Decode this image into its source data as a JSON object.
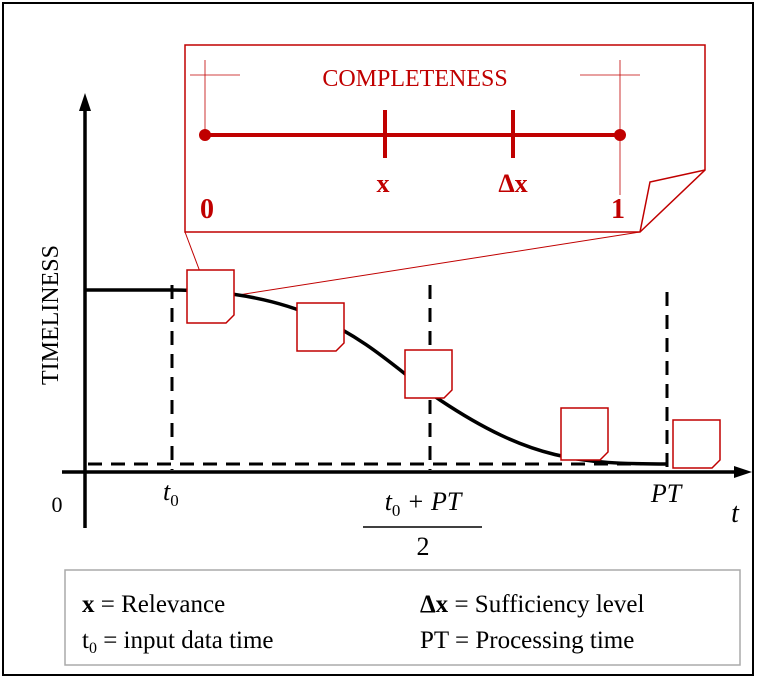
{
  "callout": {
    "title": "COMPLETENESS",
    "scale_start": "0",
    "scale_end": "1",
    "mark_1": "x",
    "mark_2": "Δx"
  },
  "axes": {
    "y_label": "TIMELINESS",
    "origin": "0",
    "x_label": "t"
  },
  "x_marks": {
    "t0": {
      "base": "t",
      "sub": "0"
    },
    "midpoint": {
      "numerator_base": "t",
      "numerator_sub": "0",
      "numerator_rest": " + PT",
      "denominator": "2"
    },
    "pt": "PT"
  },
  "legend": [
    {
      "term": "x",
      "desc": " = Relevance"
    },
    {
      "term": "Δx",
      "desc": " = Sufficiency level"
    },
    {
      "term": "t",
      "sub": "0",
      "desc": " = input data time"
    },
    {
      "term": "PT",
      "desc": " = Processing time"
    }
  ]
}
